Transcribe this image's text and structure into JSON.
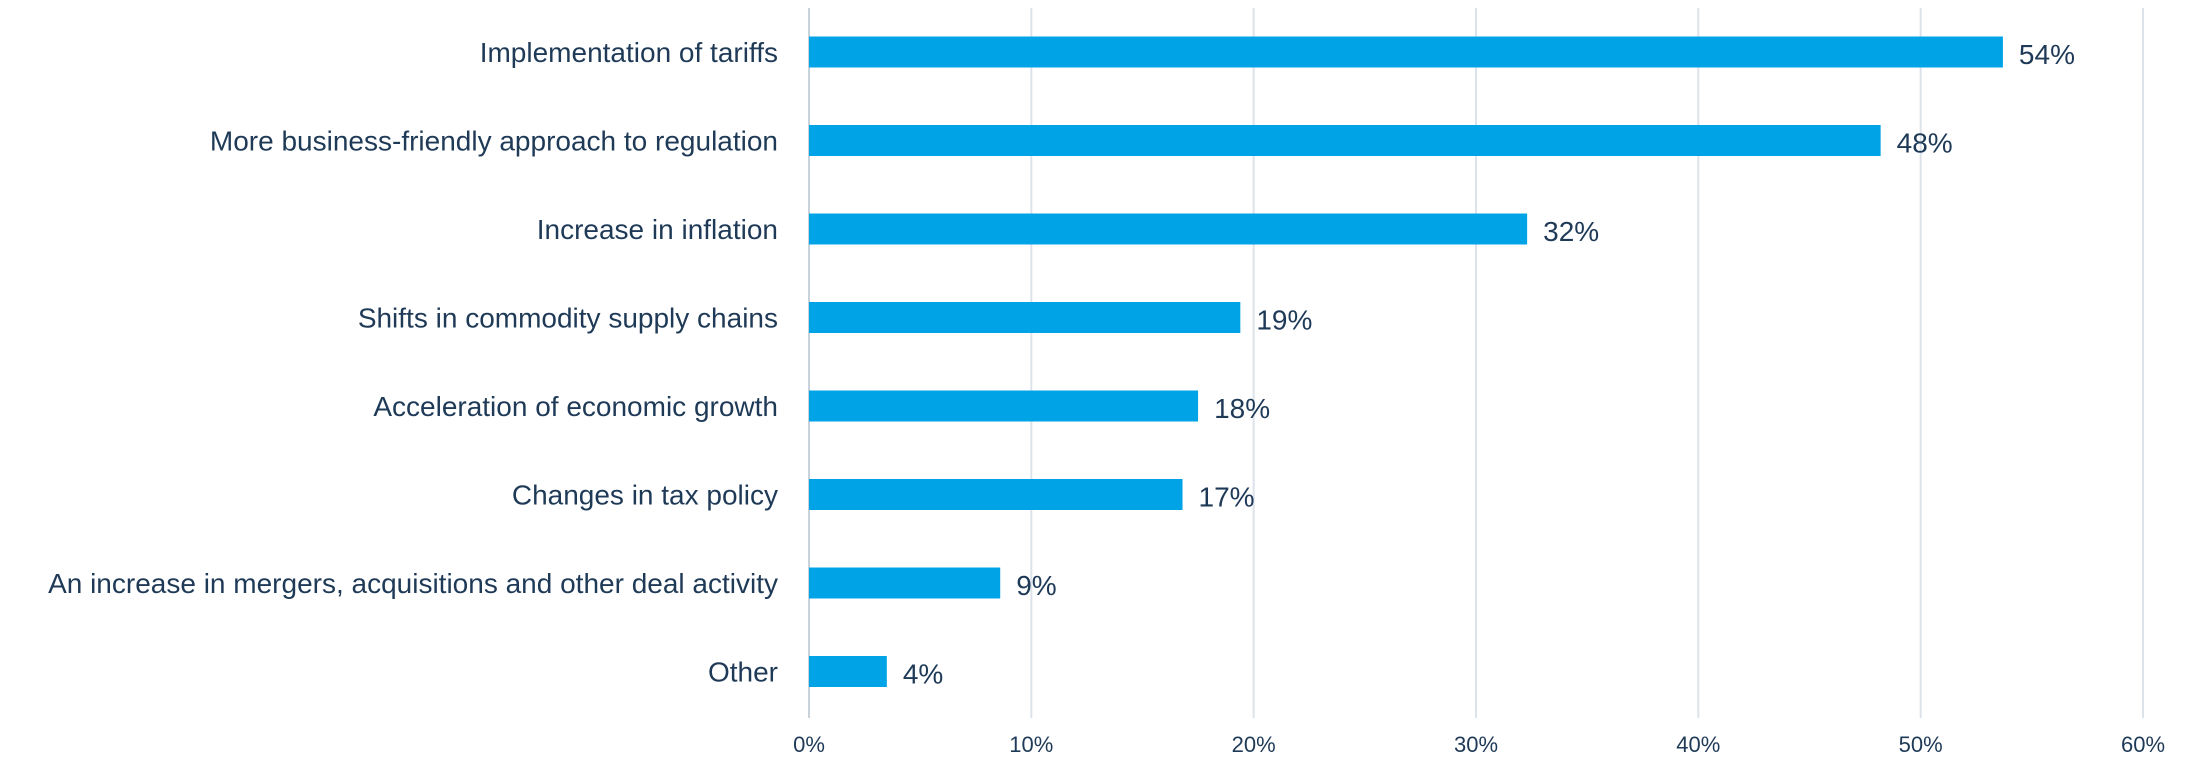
{
  "chart_data": {
    "type": "bar",
    "orientation": "horizontal",
    "categories": [
      "Implementation of tariffs",
      "More business-friendly approach to regulation",
      "Increase in inflation",
      "Shifts in commodity supply chains",
      "Acceleration of economic growth",
      "Changes in tax policy",
      "An increase in mergers, acquisitions and other deal activity",
      "Other"
    ],
    "values": [
      54,
      48,
      32,
      19,
      18,
      17,
      9,
      4
    ],
    "value_labels": [
      "54%",
      "48%",
      "32%",
      "19%",
      "18%",
      "17%",
      "9%",
      "4%"
    ],
    "bar_values": [
      53.7,
      48.2,
      32.3,
      19.4,
      17.5,
      16.8,
      8.6,
      3.5
    ],
    "xlim": [
      0,
      60
    ],
    "xticks": [
      0,
      10,
      20,
      30,
      40,
      50,
      60
    ],
    "xtick_labels": [
      "0%",
      "10%",
      "20%",
      "30%",
      "40%",
      "50%",
      "60%"
    ],
    "grid": true,
    "colors": {
      "bar": "#00a3e6",
      "text": "#1f3a57",
      "grid": "#dce3ea"
    }
  }
}
